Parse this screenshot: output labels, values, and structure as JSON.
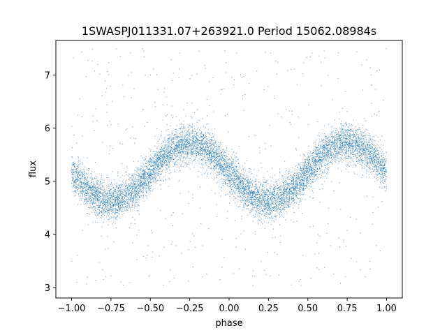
{
  "chart_data": {
    "type": "scatter",
    "title": "1SWASPJ011331.07+263921.0 Period 15062.08984s",
    "xlabel": "phase",
    "ylabel": "flux",
    "xlim": [
      -1.1,
      1.1
    ],
    "ylim": [
      2.8,
      7.65
    ],
    "xticks": [
      -1.0,
      -0.75,
      -0.5,
      -0.25,
      0.0,
      0.25,
      0.5,
      0.75,
      1.0
    ],
    "xtick_labels": [
      "−1.00",
      "−0.75",
      "−0.50",
      "−0.25",
      "0.00",
      "0.25",
      "0.50",
      "0.75",
      "1.00"
    ],
    "yticks": [
      3,
      4,
      5,
      6,
      7
    ],
    "ytick_labels": [
      "3",
      "4",
      "5",
      "6",
      "7"
    ],
    "grid": false,
    "legend": "none",
    "marker_color": "#1f77b4",
    "series": [
      {
        "model": {
          "shape": "sinusoid",
          "phase_range": [
            -1.0,
            1.0
          ],
          "mean_flux": 5.17,
          "amplitude": 0.55,
          "cycles_per_unit_phase": 1,
          "minima_at_phase": [
            -0.75,
            0.25
          ],
          "maxima_at_phase": [
            -0.25,
            0.75
          ],
          "scatter_sigma": 0.17,
          "outlier_flux_range": [
            3.0,
            7.5
          ]
        },
        "points": [
          {
            "x": -1.0,
            "y": 5.17
          },
          {
            "x": -0.875,
            "y": 4.78
          },
          {
            "x": -0.75,
            "y": 4.62
          },
          {
            "x": -0.625,
            "y": 4.78
          },
          {
            "x": -0.5,
            "y": 5.17
          },
          {
            "x": -0.375,
            "y": 5.56
          },
          {
            "x": -0.25,
            "y": 5.72
          },
          {
            "x": -0.125,
            "y": 5.56
          },
          {
            "x": 0.0,
            "y": 5.17
          },
          {
            "x": 0.125,
            "y": 4.78
          },
          {
            "x": 0.25,
            "y": 4.62
          },
          {
            "x": 0.375,
            "y": 4.78
          },
          {
            "x": 0.5,
            "y": 5.17
          },
          {
            "x": 0.625,
            "y": 5.56
          },
          {
            "x": 0.75,
            "y": 5.72
          },
          {
            "x": 0.875,
            "y": 5.56
          },
          {
            "x": 1.0,
            "y": 5.17
          }
        ]
      }
    ]
  }
}
